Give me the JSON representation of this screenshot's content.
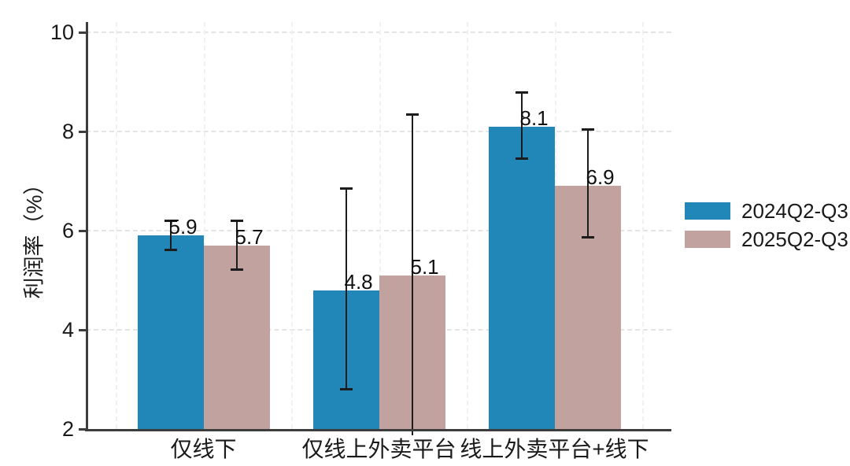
{
  "chart_data": {
    "type": "bar",
    "title": "",
    "ylabel": "利润率（%）",
    "xlabel": "",
    "ylim": [
      2,
      10
    ],
    "yticks": [
      2,
      4,
      6,
      8,
      10
    ],
    "grid": {
      "horizontal": true,
      "vertical": true,
      "style": "dashed",
      "baseline_value": 2
    },
    "legend": {
      "position": "right-center"
    },
    "categories": [
      "仅线下",
      "仅线上外卖平台",
      "线上外卖平台+线下"
    ],
    "series": [
      {
        "name": "2024Q2-Q3",
        "color": "#2187b8",
        "values": [
          5.9,
          4.8,
          8.1
        ],
        "ci_low": [
          5.6,
          2.8,
          7.45
        ],
        "ci_high": [
          6.2,
          6.85,
          8.8
        ],
        "ci_low_clipped_below_axis": [
          false,
          false,
          false
        ]
      },
      {
        "name": "2025Q2-Q3",
        "color": "#c2a29e",
        "values": [
          5.7,
          5.1,
          6.9
        ],
        "ci_low": [
          5.2,
          2.0,
          5.85
        ],
        "ci_high": [
          6.2,
          8.35,
          8.05
        ],
        "ci_low_clipped_below_axis": [
          false,
          true,
          false
        ]
      }
    ],
    "value_label_format": "0.0",
    "colors": {
      "axis": "#3d3d3d",
      "text": "#1a1a1a",
      "error_bar": "#1c1c1c",
      "grid_horizontal": "#e4e4e4",
      "grid_vertical": "#eff1f2",
      "background": "#ffffff"
    }
  }
}
